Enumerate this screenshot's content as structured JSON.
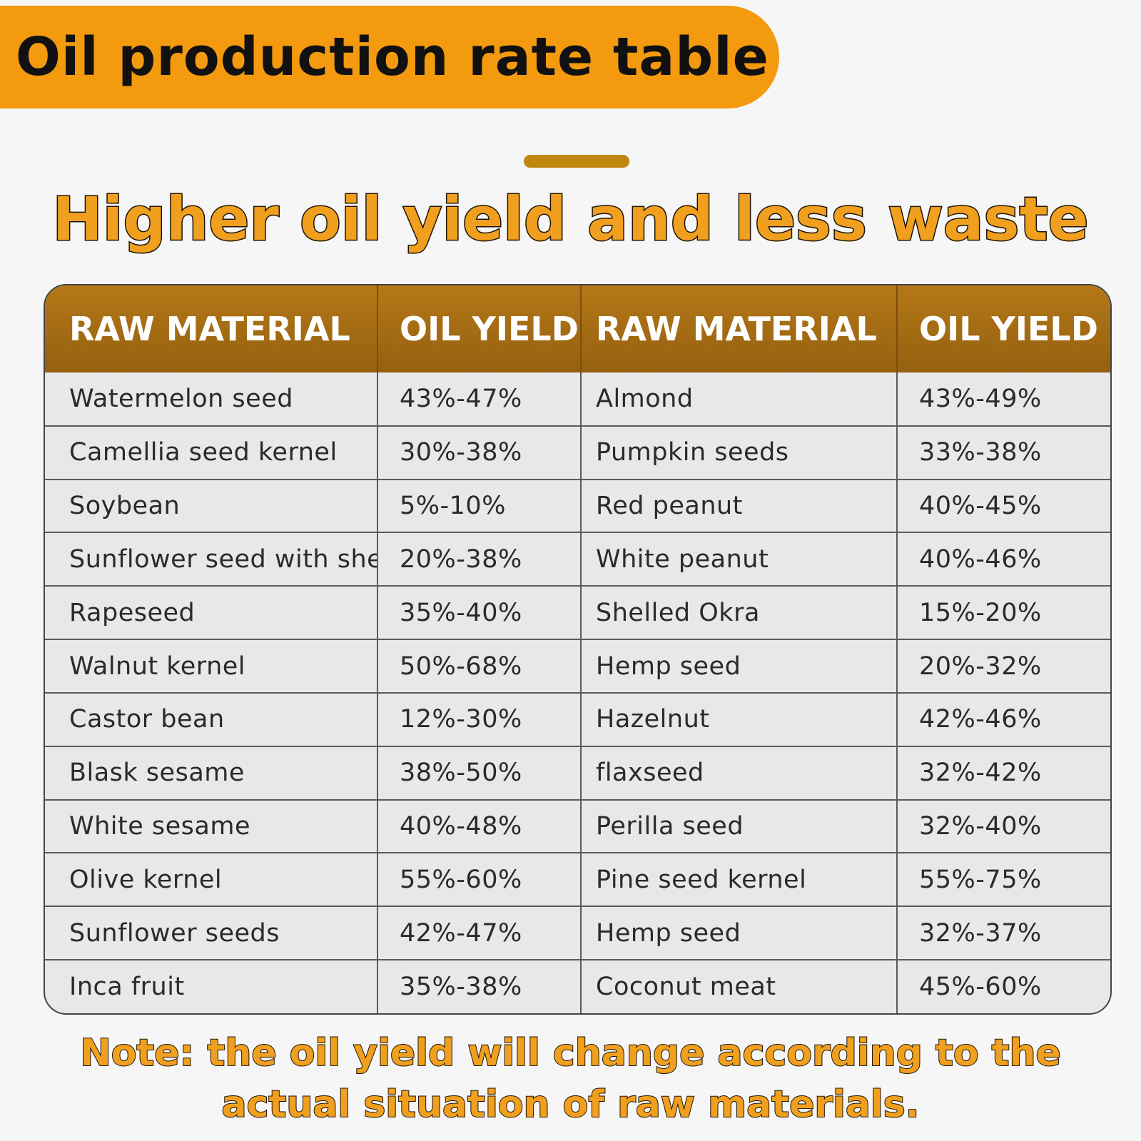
{
  "header": {
    "title": "Oil production rate table"
  },
  "subtitle": "Higher oil yield and less waste",
  "table": {
    "headers": [
      "RAW MATERIAL",
      "OIL YIELD",
      "RAW MATERIAL",
      "OIL YIELD"
    ],
    "rows": [
      [
        "Watermelon seed",
        "43%-47%",
        "Almond",
        "43%-49%"
      ],
      [
        "Camellia seed kernel",
        "30%-38%",
        "Pumpkin seeds",
        "33%-38%"
      ],
      [
        "Soybean",
        "5%-10%",
        "Red peanut",
        "40%-45%"
      ],
      [
        "Sunflower seed with shell",
        "20%-38%",
        "White peanut",
        "40%-46%"
      ],
      [
        "Rapeseed",
        "35%-40%",
        "Shelled Okra",
        "15%-20%"
      ],
      [
        "Walnut kernel",
        "50%-68%",
        "Hemp seed",
        "20%-32%"
      ],
      [
        "Castor bean",
        "12%-30%",
        "Hazelnut",
        "42%-46%"
      ],
      [
        "Blask sesame",
        "38%-50%",
        "flaxseed",
        "32%-42%"
      ],
      [
        "White sesame",
        "40%-48%",
        "Perilla seed",
        "32%-40%"
      ],
      [
        "Olive kernel",
        "55%-60%",
        "Pine seed kernel",
        "55%-75%"
      ],
      [
        "Sunflower seeds",
        "42%-47%",
        "Hemp seed",
        "32%-37%"
      ],
      [
        "Inca fruit",
        "35%-38%",
        "Coconut meat",
        "45%-60%"
      ]
    ]
  },
  "note": {
    "line1": "Note: the oil yield will change according to the",
    "line2": "actual situation of raw materials."
  },
  "colors": {
    "banner": "#f39a0f",
    "header_row": "#a56c14",
    "accent_text": "#f0a01e",
    "divider": "#c0860f"
  }
}
